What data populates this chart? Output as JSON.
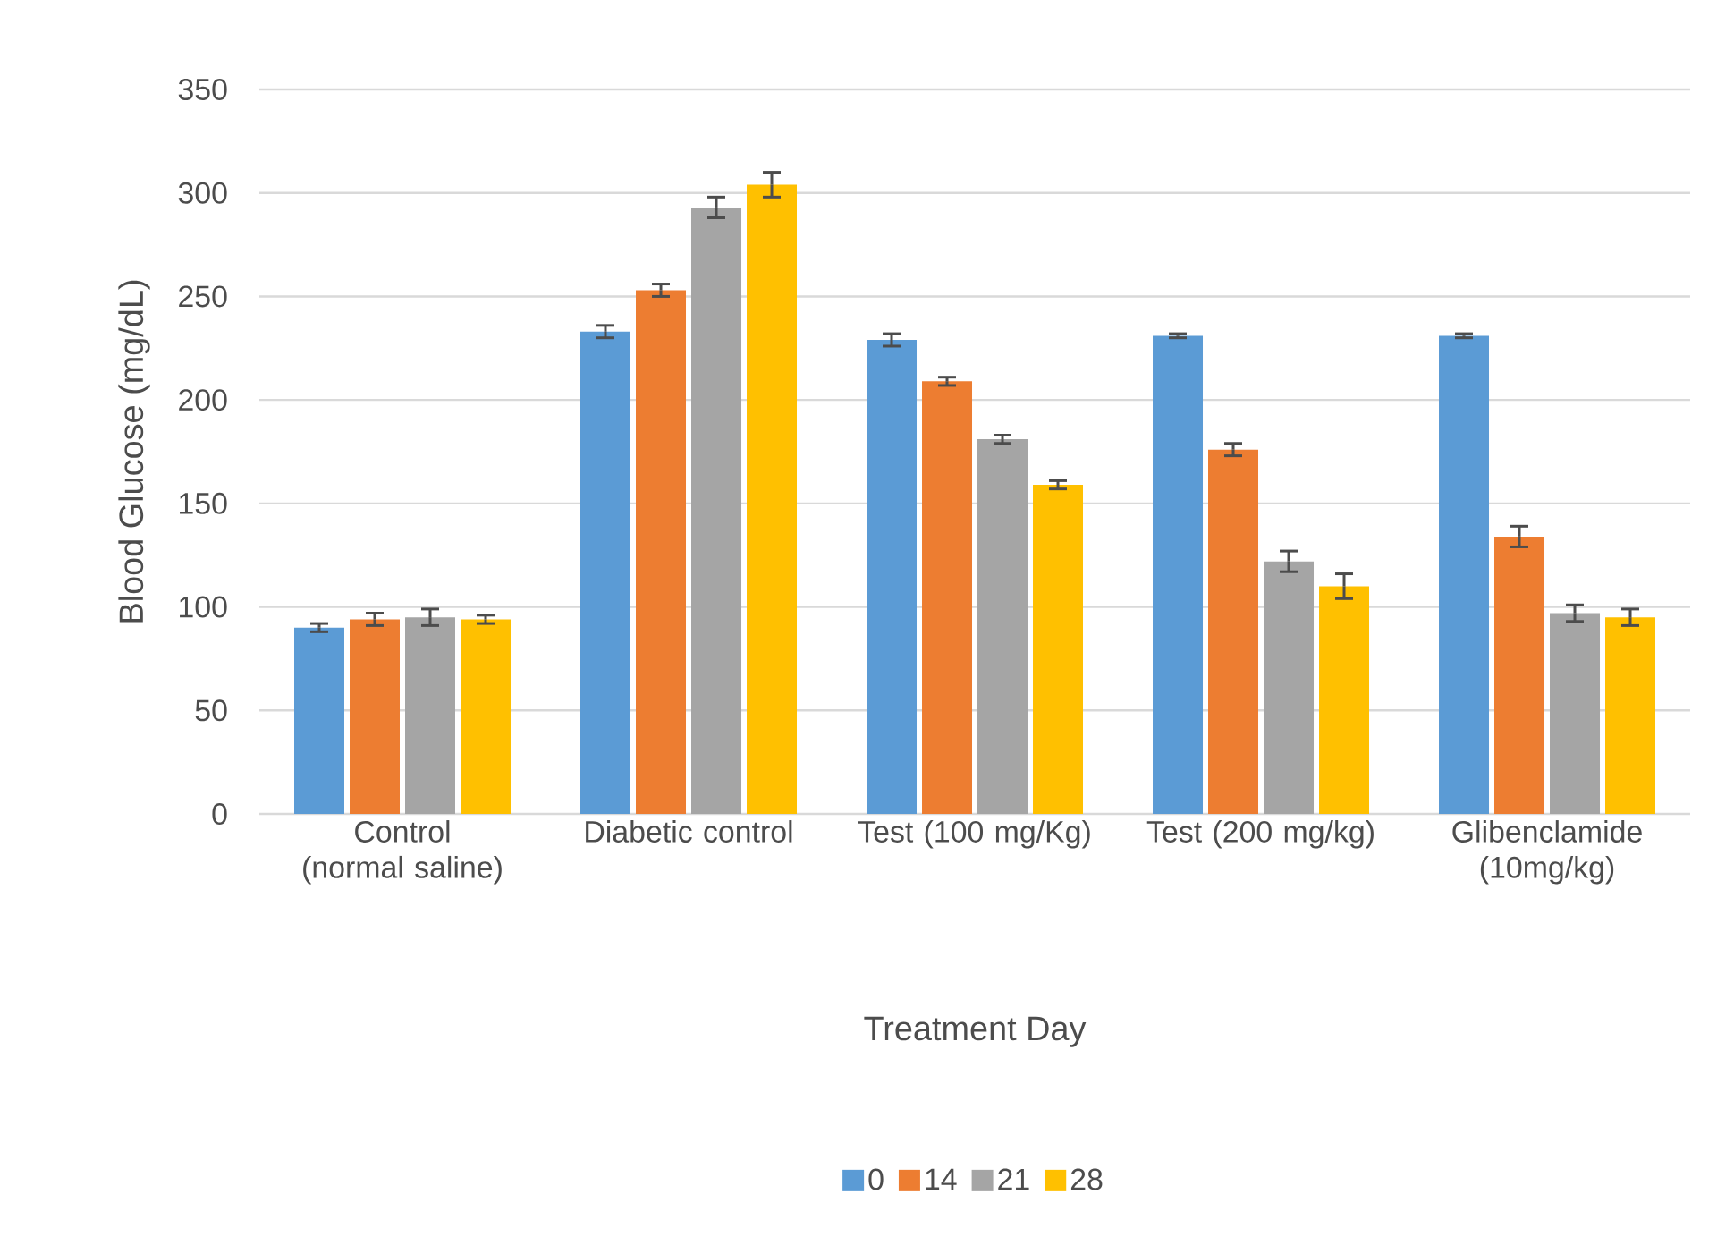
{
  "chart_data": {
    "type": "bar",
    "xlabel": "Treatment Day",
    "ylabel": "Blood Glucose (mg/dL)",
    "categories": [
      "Control (normal saline)",
      "Diabetic control",
      "Test (100 mg/Kg)",
      "Test (200 mg/kg)",
      "Glibenclamide (10mg/kg)"
    ],
    "series": [
      {
        "name": "0",
        "color": "#5b9bd5",
        "values": [
          90,
          233,
          229,
          231,
          231
        ],
        "errors": [
          2,
          3,
          3,
          1,
          1
        ]
      },
      {
        "name": "14",
        "color": "#ed7d31",
        "values": [
          94,
          253,
          209,
          176,
          134
        ],
        "errors": [
          3,
          3,
          2,
          3,
          5
        ]
      },
      {
        "name": "21",
        "color": "#a5a5a5",
        "values": [
          95,
          293,
          181,
          122,
          97
        ],
        "errors": [
          4,
          5,
          2,
          5,
          4
        ]
      },
      {
        "name": "28",
        "color": "#ffc000",
        "values": [
          94,
          304,
          159,
          110,
          95
        ],
        "errors": [
          2,
          6,
          2,
          6,
          4
        ]
      }
    ],
    "ylim": [
      0,
      350
    ],
    "yticks": [
      0,
      50,
      100,
      150,
      200,
      250,
      300,
      350
    ],
    "grid": "y",
    "legend": "bottom"
  }
}
